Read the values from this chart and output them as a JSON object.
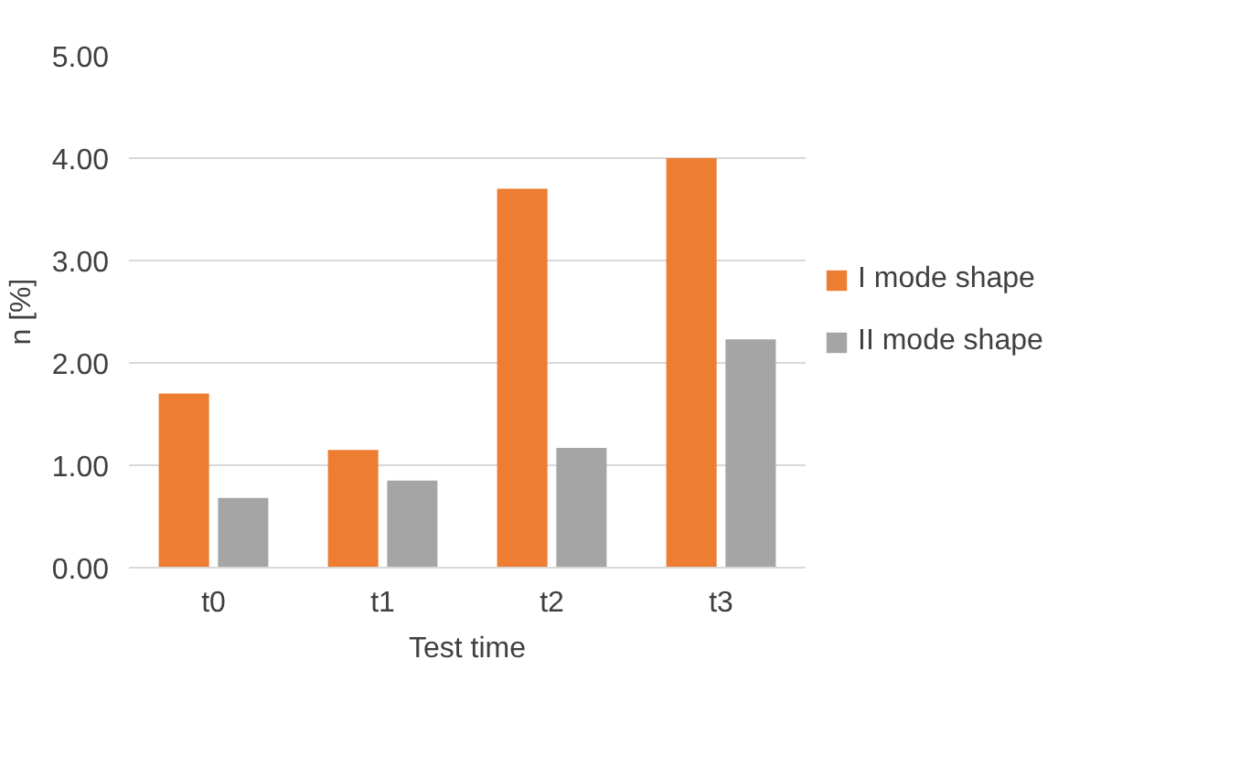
{
  "chart_data": {
    "type": "bar",
    "xlabel": "Test time",
    "ylabel": "n [%]",
    "categories": [
      "t0",
      "t1",
      "t2",
      "t3"
    ],
    "series": [
      {
        "name": "I mode shape",
        "color": "#ed7d31",
        "values": [
          1.7,
          1.15,
          3.7,
          4.0
        ]
      },
      {
        "name": "II mode shape",
        "color": "#a5a5a5",
        "values": [
          0.68,
          0.85,
          1.17,
          2.23
        ]
      }
    ],
    "ylim": [
      0,
      5
    ],
    "yticks": [
      {
        "value": 0,
        "label": "0.00"
      },
      {
        "value": 1,
        "label": "1.00"
      },
      {
        "value": 2,
        "label": "2.00"
      },
      {
        "value": 3,
        "label": "3.00"
      },
      {
        "value": 4,
        "label": "4.00"
      },
      {
        "value": 5,
        "label": "5.00"
      }
    ],
    "grid": "y",
    "legend": "right"
  }
}
